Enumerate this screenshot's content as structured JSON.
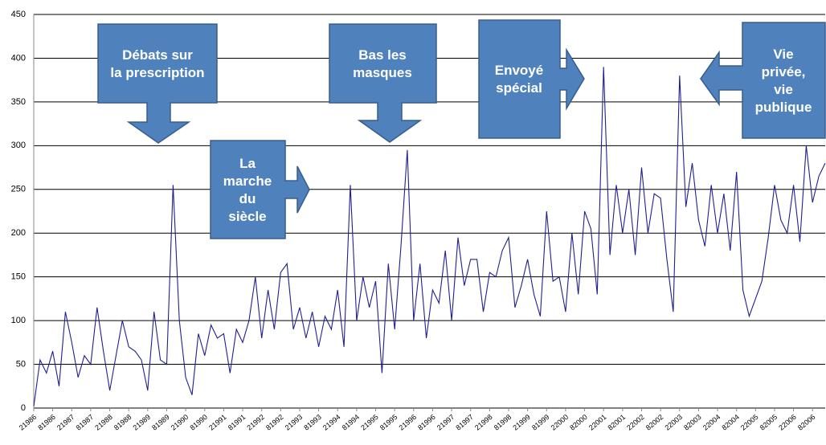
{
  "chart_data": {
    "type": "line",
    "annotations": [
      [
        "Débats sur",
        "la prescription"
      ],
      [
        "La",
        "marche",
        "du",
        "siècle"
      ],
      [
        "Bas les",
        "masques"
      ],
      [
        "Envoyé",
        "spécial"
      ],
      [
        "Vie",
        "privée,",
        "vie",
        "publique"
      ]
    ],
    "categories": [
      "21986",
      null,
      null,
      "81986",
      null,
      null,
      "21987",
      null,
      null,
      "81987",
      null,
      null,
      "21988",
      null,
      null,
      "81988",
      null,
      null,
      "21989",
      null,
      null,
      "81989",
      null,
      null,
      "21990",
      null,
      null,
      "81990",
      null,
      null,
      "21991",
      null,
      null,
      "81991",
      null,
      null,
      "21992",
      null,
      null,
      "81992",
      null,
      null,
      "21993",
      null,
      null,
      "81993",
      null,
      null,
      "21994",
      null,
      null,
      "81994",
      null,
      null,
      "21995",
      null,
      null,
      "81995",
      null,
      null,
      "21996",
      null,
      null,
      "81996",
      null,
      null,
      "21997",
      null,
      null,
      "81997",
      null,
      null,
      "21998",
      null,
      null,
      "81998",
      null,
      null,
      "21999",
      null,
      null,
      "81999",
      null,
      null,
      "22000",
      null,
      null,
      "82000",
      null,
      null,
      "22001",
      null,
      null,
      "82001",
      null,
      null,
      "22002",
      null,
      null,
      "82002",
      null,
      null,
      "22003",
      null,
      null,
      "82003",
      null,
      null,
      "22004",
      null,
      null,
      "82004",
      null,
      null,
      "22005",
      null,
      null,
      "82005",
      null,
      null,
      "22006",
      null,
      null,
      "82006",
      null,
      null
    ],
    "values": [
      2,
      55,
      40,
      65,
      25,
      110,
      75,
      35,
      60,
      50,
      115,
      65,
      20,
      60,
      100,
      70,
      65,
      55,
      20,
      110,
      55,
      50,
      255,
      100,
      35,
      15,
      85,
      60,
      95,
      80,
      85,
      40,
      90,
      75,
      100,
      150,
      80,
      135,
      90,
      155,
      165,
      90,
      115,
      80,
      110,
      70,
      105,
      90,
      135,
      70,
      255,
      100,
      150,
      115,
      145,
      40,
      165,
      90,
      185,
      295,
      100,
      165,
      80,
      135,
      120,
      180,
      100,
      195,
      140,
      170,
      170,
      110,
      155,
      150,
      180,
      195,
      115,
      140,
      170,
      130,
      105,
      225,
      145,
      150,
      110,
      200,
      130,
      225,
      205,
      130,
      390,
      175,
      255,
      200,
      250,
      175,
      275,
      200,
      245,
      240,
      170,
      110,
      380,
      230,
      280,
      215,
      185,
      255,
      200,
      245,
      180,
      270,
      135,
      105,
      125,
      145,
      195,
      255,
      215,
      200,
      255,
      190,
      300,
      235,
      265,
      280
    ],
    "color": "#1f1f8f",
    "ylim": [
      0,
      450
    ],
    "yticks": [
      0,
      50,
      100,
      150,
      200,
      250,
      300,
      350,
      400,
      450
    ],
    "grid": true
  }
}
